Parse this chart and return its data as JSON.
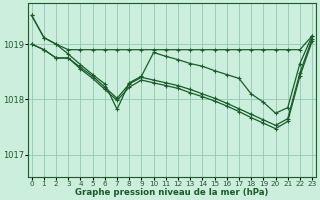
{
  "bg_color": "#cceedd",
  "grid_color": "#99ccbb",
  "line_color": "#1a5c2a",
  "ylabel_ticks": [
    1017,
    1018,
    1019
  ],
  "xlabel_ticks": [
    0,
    1,
    2,
    3,
    4,
    5,
    6,
    7,
    8,
    9,
    10,
    11,
    12,
    13,
    14,
    15,
    16,
    17,
    18,
    19,
    20,
    21,
    22,
    23
  ],
  "xlabel_label": "Graphe pression niveau de la mer (hPa)",
  "ylim": [
    1016.6,
    1019.75
  ],
  "xlim": [
    -0.3,
    23.3
  ],
  "series": [
    [
      1019.52,
      1019.12,
      1019.0,
      1018.9,
      1018.9,
      1018.9,
      1018.9,
      1018.9,
      1018.9,
      1018.9,
      1018.9,
      1018.9,
      1018.9,
      1018.9,
      1018.9,
      1018.9,
      1018.9,
      1018.9,
      1018.9,
      1018.9,
      1018.9,
      1018.9,
      1018.9,
      1019.15
    ],
    [
      1019.52,
      1019.12,
      1019.0,
      1018.82,
      1018.63,
      1018.45,
      1018.28,
      1017.82,
      1018.3,
      1018.42,
      1018.85,
      1018.78,
      1018.72,
      1018.65,
      1018.6,
      1018.52,
      1018.45,
      1018.38,
      1018.1,
      1017.95,
      1017.75,
      1017.85,
      1018.65,
      1019.15
    ],
    [
      1019.0,
      1018.9,
      1018.75,
      1018.75,
      1018.58,
      1018.42,
      1018.22,
      1018.02,
      1018.28,
      1018.4,
      1018.35,
      1018.3,
      1018.25,
      1018.18,
      1018.1,
      1018.02,
      1017.93,
      1017.83,
      1017.73,
      1017.63,
      1017.53,
      1017.65,
      1018.48,
      1019.1
    ],
    [
      1019.0,
      1018.9,
      1018.75,
      1018.75,
      1018.55,
      1018.38,
      1018.18,
      1017.98,
      1018.22,
      1018.35,
      1018.3,
      1018.25,
      1018.2,
      1018.12,
      1018.05,
      1017.97,
      1017.88,
      1017.78,
      1017.67,
      1017.57,
      1017.47,
      1017.6,
      1018.42,
      1019.05
    ]
  ],
  "marker": "+",
  "markersize": 3.5,
  "linewidth": 0.9
}
